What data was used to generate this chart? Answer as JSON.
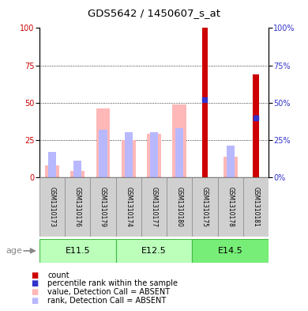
{
  "title": "GDS5642 / 1450607_s_at",
  "samples": [
    "GSM1310173",
    "GSM1310176",
    "GSM1310179",
    "GSM1310174",
    "GSM1310177",
    "GSM1310180",
    "GSM1310175",
    "GSM1310178",
    "GSM1310181"
  ],
  "age_groups": [
    {
      "label": "E11.5",
      "start": 0,
      "end": 3
    },
    {
      "label": "E12.5",
      "start": 3,
      "end": 6
    },
    {
      "label": "E14.5",
      "start": 6,
      "end": 9
    }
  ],
  "count_values": [
    0,
    0,
    0,
    0,
    0,
    0,
    100,
    0,
    69
  ],
  "percentile_rank_values": [
    null,
    null,
    null,
    null,
    null,
    null,
    52,
    null,
    40
  ],
  "absent_value_bars": [
    8,
    4,
    46,
    25,
    29,
    49,
    null,
    14,
    null
  ],
  "absent_rank_bars": [
    17,
    11,
    32,
    30,
    30,
    33,
    null,
    21,
    null
  ],
  "color_count": "#cc0000",
  "color_percentile": "#3333cc",
  "color_absent_value": "#ffb8b8",
  "color_absent_rank": "#b8b8ff",
  "color_age_bg_light": "#bbffbb",
  "color_age_bg_dark": "#77ee77",
  "color_age_border": "#44bb44",
  "color_sample_bg": "#d0d0d0",
  "ylim": [
    0,
    100
  ],
  "yticks": [
    0,
    25,
    50,
    75,
    100
  ],
  "left_ylabel_color": "#cc0000",
  "right_ylabel_color": "#3333cc",
  "legend_items": [
    {
      "color": "#cc0000",
      "label": "count"
    },
    {
      "color": "#3333cc",
      "label": "percentile rank within the sample"
    },
    {
      "color": "#ffb8b8",
      "label": "value, Detection Call = ABSENT"
    },
    {
      "color": "#b8b8ff",
      "label": "rank, Detection Call = ABSENT"
    }
  ]
}
